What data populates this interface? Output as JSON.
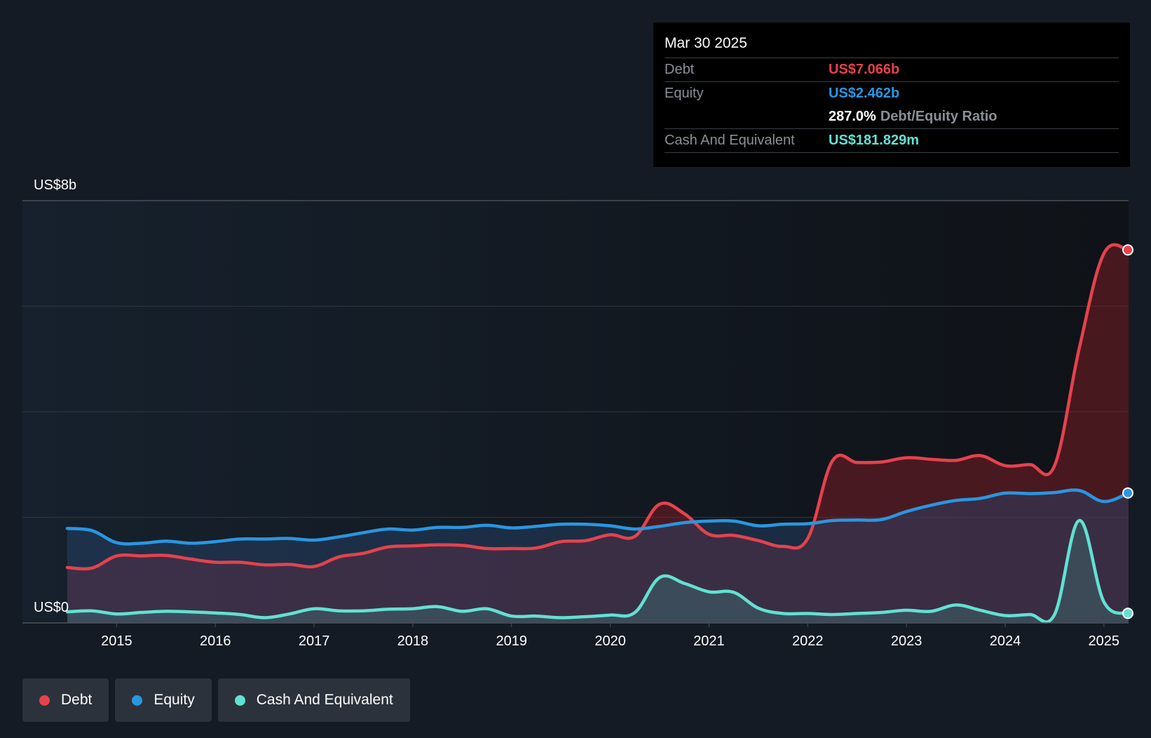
{
  "chart_data": {
    "type": "area",
    "title": "",
    "xlabel": "",
    "ylabel": "",
    "ylim": [
      0,
      8
    ],
    "y_unit": "billion US$",
    "y_tick_labels": [
      {
        "value": 8,
        "label": "US$8b"
      },
      {
        "value": 0,
        "label": "US$0"
      }
    ],
    "y_gridlines": [
      0,
      2,
      4,
      6,
      8
    ],
    "x_ticks": [
      2015,
      2016,
      2017,
      2018,
      2019,
      2020,
      2021,
      2022,
      2023,
      2024,
      2025
    ],
    "x_range": [
      2014.5,
      2025.25
    ],
    "grid": true,
    "legend_position": "bottom-left",
    "series": [
      {
        "name": "Debt",
        "color": "#e5424d",
        "values": [
          [
            2014.5,
            1.05
          ],
          [
            2014.75,
            1.04
          ],
          [
            2015.0,
            1.27
          ],
          [
            2015.25,
            1.27
          ],
          [
            2015.5,
            1.28
          ],
          [
            2015.75,
            1.21
          ],
          [
            2016.0,
            1.15
          ],
          [
            2016.25,
            1.15
          ],
          [
            2016.5,
            1.1
          ],
          [
            2016.75,
            1.11
          ],
          [
            2017.0,
            1.07
          ],
          [
            2017.25,
            1.25
          ],
          [
            2017.5,
            1.32
          ],
          [
            2017.75,
            1.44
          ],
          [
            2018.0,
            1.46
          ],
          [
            2018.25,
            1.48
          ],
          [
            2018.5,
            1.47
          ],
          [
            2018.75,
            1.41
          ],
          [
            2019.0,
            1.41
          ],
          [
            2019.25,
            1.42
          ],
          [
            2019.5,
            1.54
          ],
          [
            2019.75,
            1.56
          ],
          [
            2020.0,
            1.67
          ],
          [
            2020.25,
            1.64
          ],
          [
            2020.5,
            2.25
          ],
          [
            2020.75,
            2.07
          ],
          [
            2021.0,
            1.68
          ],
          [
            2021.25,
            1.66
          ],
          [
            2021.5,
            1.56
          ],
          [
            2021.75,
            1.45
          ],
          [
            2022.0,
            1.6
          ],
          [
            2022.25,
            3.07
          ],
          [
            2022.5,
            3.04
          ],
          [
            2022.75,
            3.05
          ],
          [
            2023.0,
            3.13
          ],
          [
            2023.25,
            3.1
          ],
          [
            2023.5,
            3.08
          ],
          [
            2023.75,
            3.17
          ],
          [
            2024.0,
            2.98
          ],
          [
            2024.25,
            3.0
          ],
          [
            2024.5,
            2.98
          ],
          [
            2024.75,
            5.2
          ],
          [
            2025.0,
            7.0
          ],
          [
            2025.25,
            7.066
          ]
        ]
      },
      {
        "name": "Equity",
        "color": "#2a96e0",
        "values": [
          [
            2014.5,
            1.79
          ],
          [
            2014.75,
            1.75
          ],
          [
            2015.0,
            1.52
          ],
          [
            2015.25,
            1.51
          ],
          [
            2015.5,
            1.55
          ],
          [
            2015.75,
            1.51
          ],
          [
            2016.0,
            1.54
          ],
          [
            2016.25,
            1.59
          ],
          [
            2016.5,
            1.59
          ],
          [
            2016.75,
            1.6
          ],
          [
            2017.0,
            1.57
          ],
          [
            2017.25,
            1.63
          ],
          [
            2017.5,
            1.71
          ],
          [
            2017.75,
            1.78
          ],
          [
            2018.0,
            1.76
          ],
          [
            2018.25,
            1.81
          ],
          [
            2018.5,
            1.81
          ],
          [
            2018.75,
            1.85
          ],
          [
            2019.0,
            1.8
          ],
          [
            2019.25,
            1.83
          ],
          [
            2019.5,
            1.87
          ],
          [
            2019.75,
            1.87
          ],
          [
            2020.0,
            1.84
          ],
          [
            2020.25,
            1.78
          ],
          [
            2020.5,
            1.83
          ],
          [
            2020.75,
            1.9
          ],
          [
            2021.0,
            1.93
          ],
          [
            2021.25,
            1.93
          ],
          [
            2021.5,
            1.84
          ],
          [
            2021.75,
            1.87
          ],
          [
            2022.0,
            1.88
          ],
          [
            2022.25,
            1.94
          ],
          [
            2022.5,
            1.95
          ],
          [
            2022.75,
            1.96
          ],
          [
            2023.0,
            2.11
          ],
          [
            2023.25,
            2.23
          ],
          [
            2023.5,
            2.32
          ],
          [
            2023.75,
            2.36
          ],
          [
            2024.0,
            2.46
          ],
          [
            2024.25,
            2.45
          ],
          [
            2024.5,
            2.47
          ],
          [
            2024.75,
            2.51
          ],
          [
            2025.0,
            2.3
          ],
          [
            2025.25,
            2.462
          ]
        ]
      },
      {
        "name": "Cash And Equivalent",
        "color": "#62e1d3",
        "values": [
          [
            2014.5,
            0.21
          ],
          [
            2014.75,
            0.23
          ],
          [
            2015.0,
            0.17
          ],
          [
            2015.25,
            0.2
          ],
          [
            2015.5,
            0.22
          ],
          [
            2015.75,
            0.21
          ],
          [
            2016.0,
            0.19
          ],
          [
            2016.25,
            0.16
          ],
          [
            2016.5,
            0.1
          ],
          [
            2016.75,
            0.17
          ],
          [
            2017.0,
            0.27
          ],
          [
            2017.25,
            0.23
          ],
          [
            2017.5,
            0.23
          ],
          [
            2017.75,
            0.26
          ],
          [
            2018.0,
            0.27
          ],
          [
            2018.25,
            0.31
          ],
          [
            2018.5,
            0.22
          ],
          [
            2018.75,
            0.27
          ],
          [
            2019.0,
            0.13
          ],
          [
            2019.25,
            0.13
          ],
          [
            2019.5,
            0.1
          ],
          [
            2019.75,
            0.12
          ],
          [
            2020.0,
            0.15
          ],
          [
            2020.25,
            0.2
          ],
          [
            2020.5,
            0.86
          ],
          [
            2020.75,
            0.75
          ],
          [
            2021.0,
            0.59
          ],
          [
            2021.25,
            0.58
          ],
          [
            2021.5,
            0.28
          ],
          [
            2021.75,
            0.18
          ],
          [
            2022.0,
            0.18
          ],
          [
            2022.25,
            0.16
          ],
          [
            2022.5,
            0.18
          ],
          [
            2022.75,
            0.2
          ],
          [
            2023.0,
            0.24
          ],
          [
            2023.25,
            0.22
          ],
          [
            2023.5,
            0.34
          ],
          [
            2023.75,
            0.24
          ],
          [
            2024.0,
            0.14
          ],
          [
            2024.25,
            0.16
          ],
          [
            2024.5,
            0.16
          ],
          [
            2024.75,
            1.94
          ],
          [
            2025.0,
            0.4
          ],
          [
            2025.25,
            0.182
          ]
        ]
      }
    ]
  },
  "tooltip": {
    "date": "Mar 30 2025",
    "debt_label": "Debt",
    "debt_value": "US$7.066b",
    "equity_label": "Equity",
    "equity_value": "US$2.462b",
    "ratio_value": "287.0%",
    "ratio_label": "Debt/Equity Ratio",
    "cash_label": "Cash And Equivalent",
    "cash_value": "US$181.829m"
  },
  "legend": [
    {
      "label": "Debt",
      "color": "#e5424d"
    },
    {
      "label": "Equity",
      "color": "#2a96e0"
    },
    {
      "label": "Cash And Equivalent",
      "color": "#62e1d3"
    }
  ]
}
